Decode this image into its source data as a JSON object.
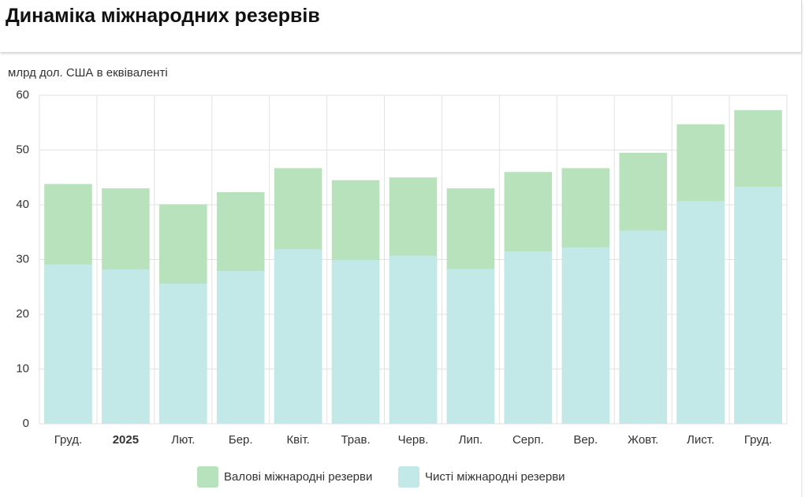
{
  "chart_data": {
    "type": "overlap-bar",
    "title": "Динаміка міжнародних резервів",
    "y_label": "млрд дол. США в еквіваленті",
    "categories": [
      "Груд.",
      "2025",
      "Лют.",
      "Бер.",
      "Квіт.",
      "Трав.",
      "Черв.",
      "Лип.",
      "Серп.",
      "Вер.",
      "Жовт.",
      "Лист.",
      "Груд."
    ],
    "series": [
      {
        "name": "Валові міжнародні резерви",
        "color": "#b8e2bb",
        "values": [
          43.8,
          43.0,
          40.1,
          42.3,
          46.7,
          44.5,
          45.0,
          43.0,
          46.0,
          46.7,
          49.5,
          54.7,
          57.3
        ]
      },
      {
        "name": "Чисті міжнародні резерви",
        "color": "#c2e8e8",
        "values": [
          29.1,
          28.2,
          25.6,
          27.9,
          31.9,
          29.9,
          30.7,
          28.3,
          31.5,
          32.2,
          35.3,
          40.7,
          43.3
        ]
      }
    ],
    "ylim": [
      0,
      60
    ],
    "yticks": [
      0,
      10,
      20,
      30,
      40,
      50,
      60
    ],
    "grid": true
  }
}
